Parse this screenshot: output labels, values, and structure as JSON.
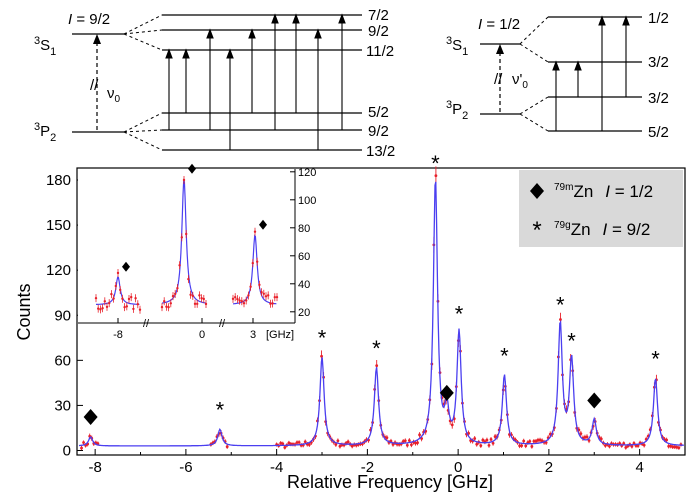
{
  "level_diagram": {
    "left": {
      "upper_state": {
        "prefix": "3",
        "letter": "S",
        "suffix": "1"
      },
      "lower_state": {
        "prefix": "3",
        "letter": "P",
        "suffix": "2"
      },
      "spin": {
        "italic": "I",
        "value": " = 9/2"
      },
      "transition": {
        "symbol": "ν",
        "sub": "0"
      },
      "upper_levels": [
        "7/2",
        "9/2",
        "11/2"
      ],
      "lower_levels": [
        "5/2",
        "9/2",
        "13/2"
      ]
    },
    "right": {
      "upper_state": {
        "prefix": "3",
        "letter": "S",
        "suffix": "1"
      },
      "lower_state": {
        "prefix": "3",
        "letter": "P",
        "suffix": "2"
      },
      "spin": {
        "italic": "I",
        "value": " = 1/2"
      },
      "transition": {
        "symbol": "ν'",
        "sub": "0"
      },
      "upper_levels": [
        "1/2",
        "3/2"
      ],
      "lower_levels": [
        "3/2",
        "5/2"
      ]
    }
  },
  "chart_data": [
    {
      "type": "line",
      "xlabel": "Relative Frequency [GHz]",
      "ylabel": "Counts",
      "xlim": [
        -8.4,
        5.0
      ],
      "ylim": [
        -3,
        188
      ],
      "x_ticks": [
        -8,
        -6,
        -4,
        -2,
        0,
        2,
        4
      ],
      "y_ticks": [
        0,
        30,
        60,
        90,
        120,
        150,
        180
      ],
      "baseline": 3,
      "peaks": [
        {
          "x": -8.1,
          "y": 9,
          "marker": "diamond"
        },
        {
          "x": -5.25,
          "y": 14,
          "marker": "star"
        },
        {
          "x": -3.0,
          "y": 62,
          "marker": "star"
        },
        {
          "x": -1.8,
          "y": 55,
          "marker": "star"
        },
        {
          "x": -0.5,
          "y": 180,
          "marker": "star"
        },
        {
          "x": -0.25,
          "y": 25,
          "marker": "diamond"
        },
        {
          "x": 0.02,
          "y": 78,
          "marker": "star"
        },
        {
          "x": 1.02,
          "y": 50,
          "marker": "star"
        },
        {
          "x": 2.25,
          "y": 84,
          "marker": "star"
        },
        {
          "x": 2.5,
          "y": 60,
          "marker": "star"
        },
        {
          "x": 3.0,
          "y": 20,
          "marker": "diamond"
        },
        {
          "x": 4.35,
          "y": 48,
          "marker": "star"
        }
      ],
      "series": [
        {
          "name": "",
          "kind": "data points with error bars",
          "color": "#e8202a"
        },
        {
          "name": "",
          "kind": "fit",
          "color": "#4b3ff0"
        }
      ],
      "legend": {
        "position": "top-right",
        "entries": [
          {
            "marker": "diamond",
            "isotope": {
              "mass": "79m",
              "element": "Zn"
            },
            "spin": {
              "italic": "I",
              "value": " = 1/2"
            }
          },
          {
            "marker": "star",
            "isotope": {
              "mass": "79g",
              "element": "Zn"
            },
            "spin": {
              "italic": "I",
              "value": " = 9/2"
            }
          }
        ]
      }
    },
    {
      "type": "line",
      "inset": true,
      "x_ticks": [
        "-8",
        "0",
        "3"
      ],
      "x_unit": "[GHz]",
      "y_ticks": [
        20,
        40,
        60,
        80,
        100,
        120
      ],
      "ylim": [
        12,
        122
      ],
      "segments": [
        {
          "x": -8.1,
          "y": 45,
          "marker": "diamond"
        },
        {
          "x": -0.25,
          "y": 115,
          "marker": "diamond"
        },
        {
          "x": 3.0,
          "y": 75,
          "marker": "diamond"
        }
      ],
      "baseline": 25
    }
  ],
  "colors": {
    "data": "#e8202a",
    "fit": "#4b3ff0",
    "legend_bg": "#d9d9d9"
  }
}
